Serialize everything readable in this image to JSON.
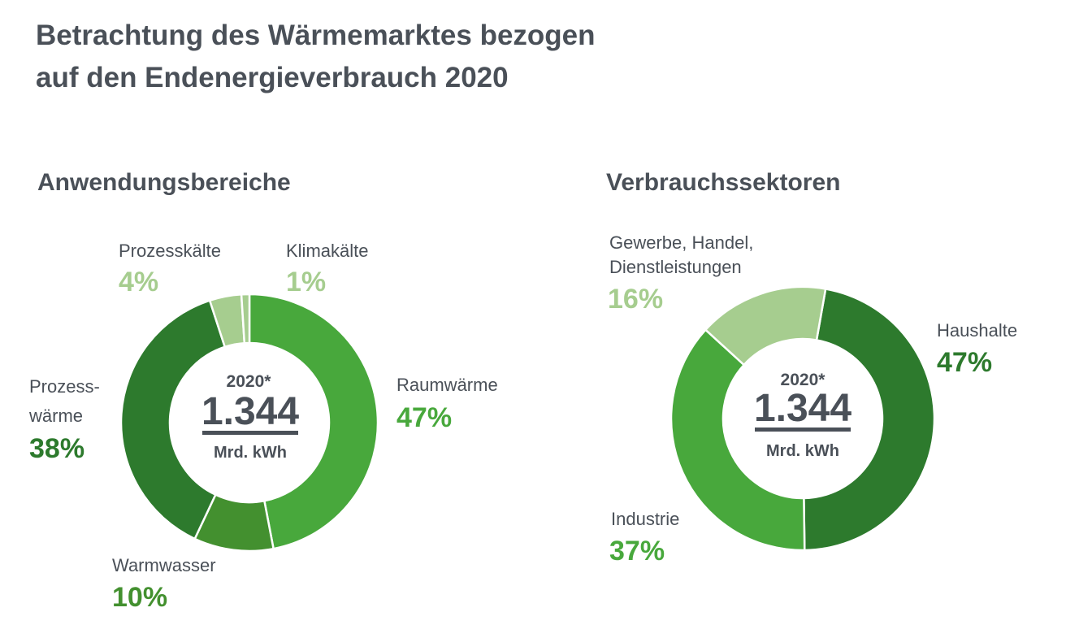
{
  "title_line1": "Betrachtung des Wärmemarktes bezogen",
  "title_line2": "auf den Endenergieverbrauch 2020",
  "colors": {
    "text": "#4a5058",
    "dark_green": "#2d7a2d",
    "mid_green": "#48a83c",
    "olive_green": "#43902f",
    "light_green": "#a6cd8f"
  },
  "chart_data": [
    {
      "type": "pie",
      "subtype": "donut",
      "title": "Anwendungsbereiche",
      "center": {
        "year": "2020*",
        "value": "1.344",
        "unit": "Mrd. kWh"
      },
      "slices": [
        {
          "name": "Raumwärme",
          "value": 47,
          "label": "47%",
          "color": "#48a83c"
        },
        {
          "name": "Warmwasser",
          "value": 10,
          "label": "10%",
          "color": "#43902f"
        },
        {
          "name_line1": "Prozess-",
          "name_line2": "wärme",
          "value": 38,
          "label": "38%",
          "color": "#2d7a2d"
        },
        {
          "name": "Prozesskälte",
          "value": 4,
          "label": "4%",
          "color": "#a6cd8f"
        },
        {
          "name": "Klimakälte",
          "value": 1,
          "label": "1%",
          "color": "#a6cd8f"
        }
      ]
    },
    {
      "type": "pie",
      "subtype": "donut",
      "title": "Verbrauchssektoren",
      "center": {
        "year": "2020*",
        "value": "1.344",
        "unit": "Mrd. kWh"
      },
      "slices": [
        {
          "name": "Haushalte",
          "value": 47,
          "label": "47%",
          "color": "#2d7a2d"
        },
        {
          "name": "Industrie",
          "value": 37,
          "label": "37%",
          "color": "#48a83c"
        },
        {
          "name_line1": "Gewerbe, Handel,",
          "name_line2": "Dienstleistungen",
          "value": 16,
          "label": "16%",
          "color": "#a6cd8f"
        }
      ]
    }
  ]
}
